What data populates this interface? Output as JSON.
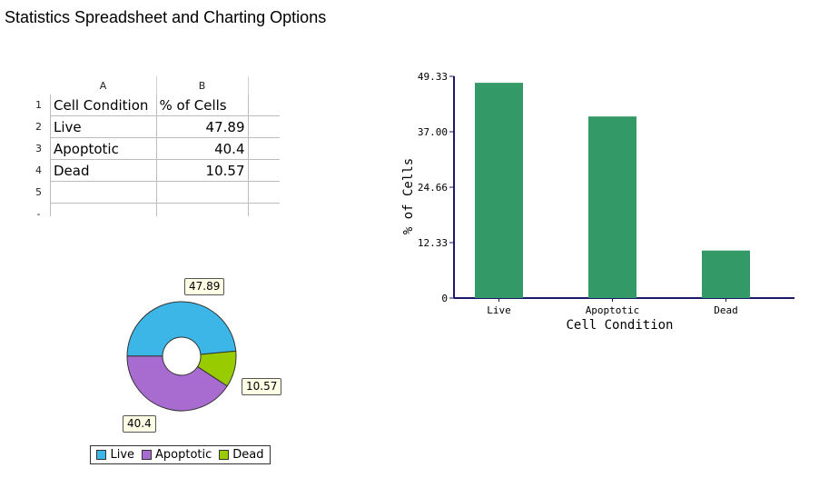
{
  "page": {
    "title": "Statistics Spreadsheet and Charting Options"
  },
  "spreadsheet": {
    "columns": [
      "A",
      "B"
    ],
    "rows": [
      {
        "n": "1",
        "a": "Cell Condition",
        "b": "% of Cells"
      },
      {
        "n": "2",
        "a": "Live",
        "b": "47.89"
      },
      {
        "n": "3",
        "a": "Apoptotic",
        "b": "40.4"
      },
      {
        "n": "4",
        "a": "Dead",
        "b": "10.57"
      },
      {
        "n": "5",
        "a": "",
        "b": ""
      }
    ]
  },
  "colors": {
    "live": "#3bb6e6",
    "apoptotic": "#a86bd0",
    "dead": "#99cc00",
    "bar": "#339966",
    "axis": "#1a1a66"
  },
  "chart_data": [
    {
      "type": "pie",
      "donut": true,
      "categories": [
        "Live",
        "Apoptotic",
        "Dead"
      ],
      "values": [
        47.89,
        40.4,
        10.57
      ],
      "data_labels": [
        "47.89",
        "40.4",
        "10.57"
      ],
      "legend": {
        "placement": "bottom",
        "entries": [
          "Live",
          "Apoptotic",
          "Dead"
        ]
      }
    },
    {
      "type": "bar",
      "categories": [
        "Live",
        "Apoptotic",
        "Dead"
      ],
      "values": [
        47.89,
        40.4,
        10.57
      ],
      "xlabel": "Cell Condition",
      "ylabel": "% of Cells",
      "ylim": [
        0,
        49.33
      ],
      "yticks": [
        "0",
        "12.33",
        "24.66",
        "37.00",
        "49.33"
      ],
      "grid": false
    }
  ]
}
